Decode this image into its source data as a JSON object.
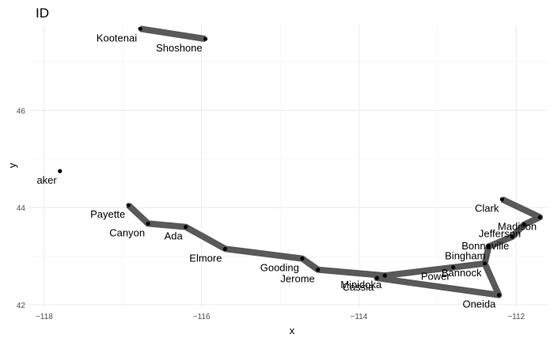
{
  "chart_data": {
    "type": "scatter",
    "title": "ID",
    "xlabel": "x",
    "ylabel": "y",
    "xlim": [
      -118.2,
      -111.6
    ],
    "ylim": [
      41.95,
      47.75
    ],
    "xticks": [
      -118,
      -116,
      -114,
      -112
    ],
    "yticks": [
      42,
      44,
      46
    ],
    "grid": true,
    "points": [
      {
        "name": "Kootenai",
        "x": -116.78,
        "y": 47.68
      },
      {
        "name": "Shoshone",
        "x": -115.95,
        "y": 47.47
      },
      {
        "name": "aker",
        "x": -117.8,
        "y": 44.75
      },
      {
        "name": "Payette",
        "x": -116.93,
        "y": 44.05
      },
      {
        "name": "Canyon",
        "x": -116.68,
        "y": 43.67
      },
      {
        "name": "Ada",
        "x": -116.2,
        "y": 43.6
      },
      {
        "name": "Elmore",
        "x": -115.7,
        "y": 43.15
      },
      {
        "name": "Gooding",
        "x": -114.72,
        "y": 42.95
      },
      {
        "name": "Jerome",
        "x": -114.52,
        "y": 42.72
      },
      {
        "name": "Minidoka",
        "x": -113.67,
        "y": 42.6
      },
      {
        "name": "Cassia",
        "x": -113.77,
        "y": 42.55
      },
      {
        "name": "Power",
        "x": -112.8,
        "y": 42.77
      },
      {
        "name": "Bannock",
        "x": -112.4,
        "y": 42.85
      },
      {
        "name": "Bingham",
        "x": -112.35,
        "y": 43.2
      },
      {
        "name": "Oneida",
        "x": -112.22,
        "y": 42.2
      },
      {
        "name": "Bonneville",
        "x": -112.05,
        "y": 43.4
      },
      {
        "name": "Jefferson",
        "x": -111.9,
        "y": 43.65
      },
      {
        "name": "Madison",
        "x": -111.7,
        "y": 43.8
      },
      {
        "name": "Clark",
        "x": -112.18,
        "y": 44.17
      }
    ],
    "paths": [
      [
        "Kootenai",
        "Shoshone"
      ],
      [
        "Payette",
        "Canyon",
        "Ada",
        "Elmore",
        "Gooding",
        "Jerome",
        "Minidoka",
        "Cassia",
        "Oneida",
        "Bannock",
        "Bingham",
        "Bonneville",
        "Jefferson",
        "Madison",
        "Clark"
      ],
      [
        "Minidoka",
        "Power",
        "Bannock"
      ]
    ]
  }
}
